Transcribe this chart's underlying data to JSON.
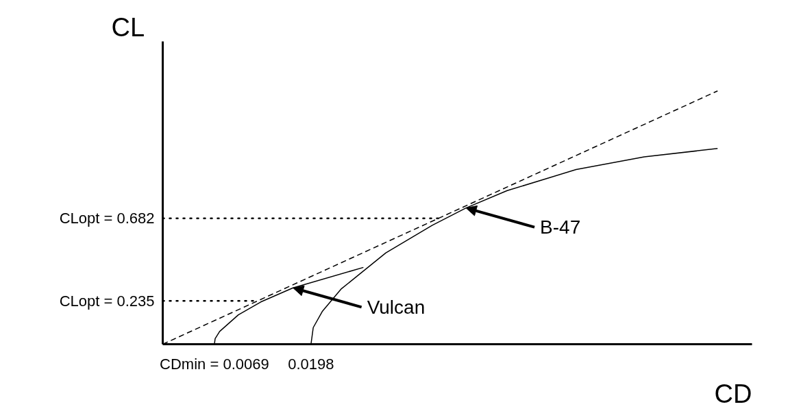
{
  "chart_data": {
    "type": "line",
    "xlabel": "CD",
    "ylabel": "CL",
    "xlim": [
      0,
      0.0787
    ],
    "ylim": [
      0,
      1.64
    ],
    "xticks": [
      {
        "value": 0.0069,
        "label": "CDmin = 0.0069"
      },
      {
        "value": 0.0198,
        "label": "0.0198"
      }
    ],
    "yticks": [
      {
        "value": 0.235,
        "label": "CLopt = 0.235"
      },
      {
        "value": 0.682,
        "label": "CLopt = 0.682"
      }
    ],
    "grid": false,
    "marker": "none",
    "series": [
      {
        "color": "#000000",
        "line_style": "dashed",
        "x": [
          0,
          0.0741
        ],
        "values": [
          0,
          1.372
        ]
      },
      {
        "color": "#000000",
        "line_style": "solid",
        "x": [
          0.0069,
          0.007,
          0.0076,
          0.0101,
          0.0131,
          0.0174,
          0.0268
        ],
        "values": [
          0,
          0.03,
          0.069,
          0.159,
          0.229,
          0.305,
          0.416
        ]
      },
      {
        "color": "#000000",
        "line_style": "solid",
        "x": [
          0.0198,
          0.0201,
          0.0213,
          0.0238,
          0.0298,
          0.036,
          0.0405,
          0.046,
          0.0552,
          0.0643,
          0.0741
        ],
        "values": [
          0,
          0.09,
          0.177,
          0.298,
          0.495,
          0.644,
          0.738,
          0.832,
          0.946,
          1.015,
          1.06
        ]
      }
    ],
    "ref_lines": [
      {
        "axis": "y",
        "value": 0.235,
        "label": null,
        "line_style": "dotted"
      },
      {
        "axis": "y",
        "value": 0.682,
        "label": null,
        "line_style": "dotted"
      }
    ],
    "annotations": [
      {
        "text": "Vulcan",
        "x": 0.0174,
        "y": 0.305
      },
      {
        "text": "B-47",
        "x": 0.0405,
        "y": 0.738
      }
    ]
  }
}
